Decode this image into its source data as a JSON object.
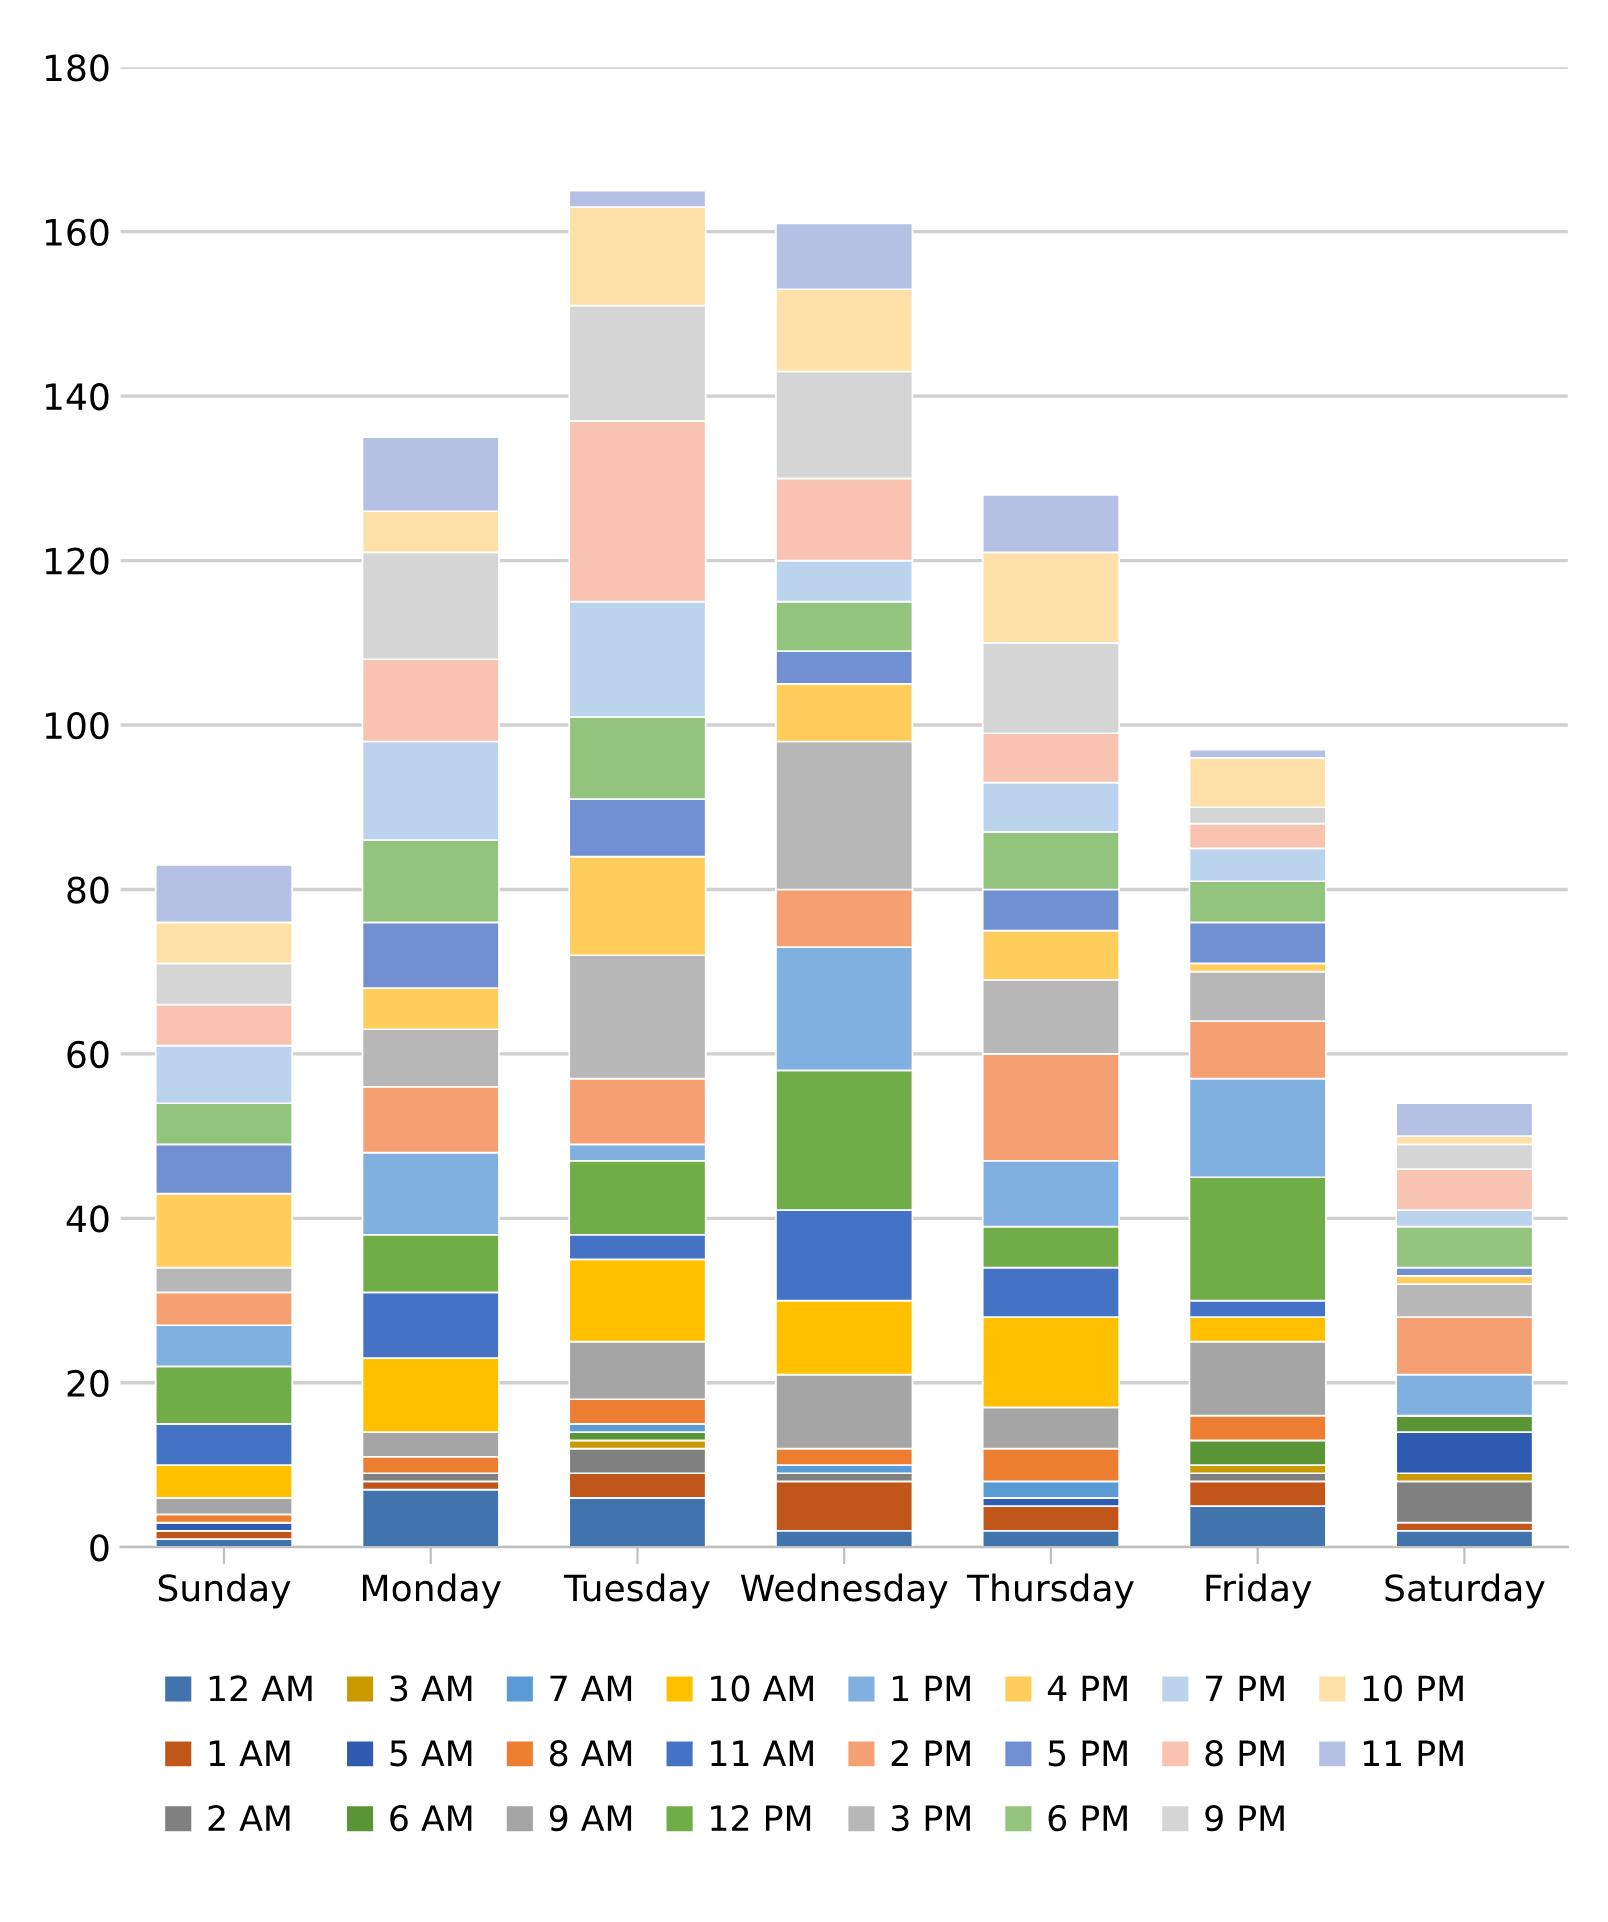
{
  "chart_data": {
    "type": "bar",
    "stacked": true,
    "categories": [
      "Sunday",
      "Monday",
      "Tuesday",
      "Wednesday",
      "Thursday",
      "Friday",
      "Saturday"
    ],
    "ylim": [
      0,
      180
    ],
    "yticks": [
      0,
      20,
      40,
      60,
      80,
      100,
      120,
      140,
      160,
      180
    ],
    "grid": "y",
    "legend": "bottom",
    "series": [
      {
        "name": "12 AM",
        "color": "#4174ad",
        "values": [
          1,
          7,
          6,
          2,
          2,
          5,
          2
        ]
      },
      {
        "name": "1 AM",
        "color": "#c0561a",
        "values": [
          1,
          1,
          3,
          6,
          3,
          3,
          1
        ]
      },
      {
        "name": "2 AM",
        "color": "#808080",
        "values": [
          0,
          1,
          3,
          1,
          0,
          1,
          5
        ]
      },
      {
        "name": "3 AM",
        "color": "#c99a00",
        "values": [
          0,
          0,
          1,
          0,
          0,
          1,
          1
        ]
      },
      {
        "name": "5 AM",
        "color": "#2f5bb0",
        "values": [
          1,
          0,
          0,
          0,
          1,
          0,
          5
        ]
      },
      {
        "name": "6 AM",
        "color": "#5a9535",
        "values": [
          0,
          0,
          1,
          0,
          0,
          3,
          2
        ]
      },
      {
        "name": "7 AM",
        "color": "#5b9bd5",
        "values": [
          0,
          0,
          1,
          1,
          2,
          0,
          0
        ]
      },
      {
        "name": "8 AM",
        "color": "#ed7d31",
        "values": [
          1,
          2,
          3,
          2,
          4,
          3,
          0
        ]
      },
      {
        "name": "9 AM",
        "color": "#a5a5a5",
        "values": [
          2,
          3,
          7,
          9,
          5,
          9,
          0
        ]
      },
      {
        "name": "10 AM",
        "color": "#ffc000",
        "values": [
          4,
          9,
          10,
          9,
          11,
          3,
          0
        ]
      },
      {
        "name": "11 AM",
        "color": "#4472c4",
        "values": [
          5,
          8,
          3,
          11,
          6,
          2,
          0
        ]
      },
      {
        "name": "12 PM",
        "color": "#70ad47",
        "values": [
          7,
          7,
          9,
          17,
          5,
          15,
          0
        ]
      },
      {
        "name": "1 PM",
        "color": "#7fb0e0",
        "values": [
          5,
          10,
          2,
          15,
          8,
          12,
          5
        ]
      },
      {
        "name": "2 PM",
        "color": "#f4a073",
        "values": [
          4,
          8,
          8,
          7,
          13,
          7,
          7
        ]
      },
      {
        "name": "3 PM",
        "color": "#b7b7b7",
        "values": [
          3,
          7,
          15,
          18,
          9,
          6,
          4
        ]
      },
      {
        "name": "4 PM",
        "color": "#ffcd5c",
        "values": [
          9,
          5,
          12,
          7,
          6,
          1,
          1
        ]
      },
      {
        "name": "5 PM",
        "color": "#7190d2",
        "values": [
          6,
          8,
          7,
          4,
          5,
          5,
          1
        ]
      },
      {
        "name": "6 PM",
        "color": "#93c47d",
        "values": [
          5,
          10,
          10,
          6,
          7,
          5,
          5
        ]
      },
      {
        "name": "7 PM",
        "color": "#bcd3ee",
        "values": [
          7,
          12,
          14,
          5,
          6,
          4,
          2
        ]
      },
      {
        "name": "8 PM",
        "color": "#f8c3b0",
        "values": [
          5,
          10,
          22,
          10,
          6,
          3,
          5
        ]
      },
      {
        "name": "9 PM",
        "color": "#d5d5d5",
        "values": [
          5,
          13,
          14,
          13,
          11,
          2,
          3
        ]
      },
      {
        "name": "10 PM",
        "color": "#ffe0a8",
        "values": [
          5,
          5,
          12,
          10,
          11,
          6,
          1
        ]
      },
      {
        "name": "11 PM",
        "color": "#b4c0e4",
        "values": [
          7,
          9,
          2,
          8,
          7,
          1,
          4
        ]
      }
    ]
  }
}
